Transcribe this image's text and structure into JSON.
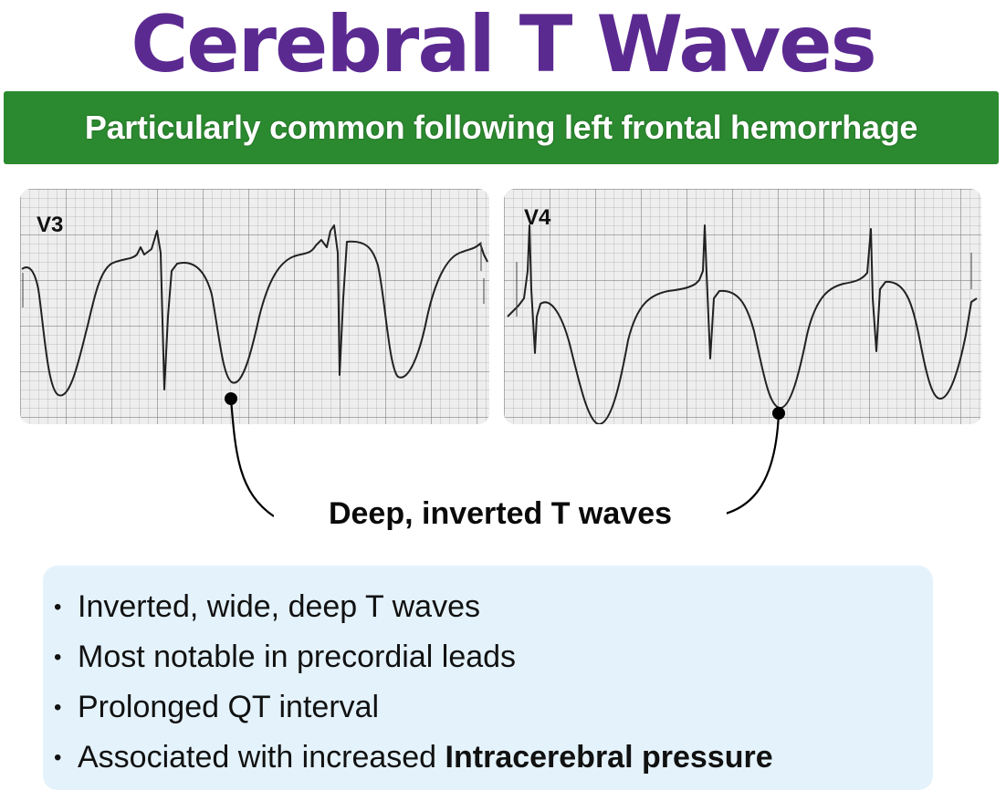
{
  "title": "Cerebral T Waves",
  "banner": "Particularly common following left frontal hemorrhage",
  "ecg_strips": [
    {
      "lead": "V3"
    },
    {
      "lead": "V4"
    }
  ],
  "callout": "Deep, inverted T waves",
  "bullets": [
    {
      "text": "Inverted, wide, deep T waves",
      "bold": ""
    },
    {
      "text": "Most notable in precordial leads",
      "bold": ""
    },
    {
      "text": "Prolonged QT interval",
      "bold": ""
    },
    {
      "text": "Associated with increased ",
      "bold": "Intracerebral pressure"
    }
  ],
  "colors": {
    "title": "#5b2a91",
    "banner": "#2b8a2f",
    "bullet_box": "#e4f2fb",
    "ecg_paper": "#eeeeee",
    "trace": "#222222"
  }
}
